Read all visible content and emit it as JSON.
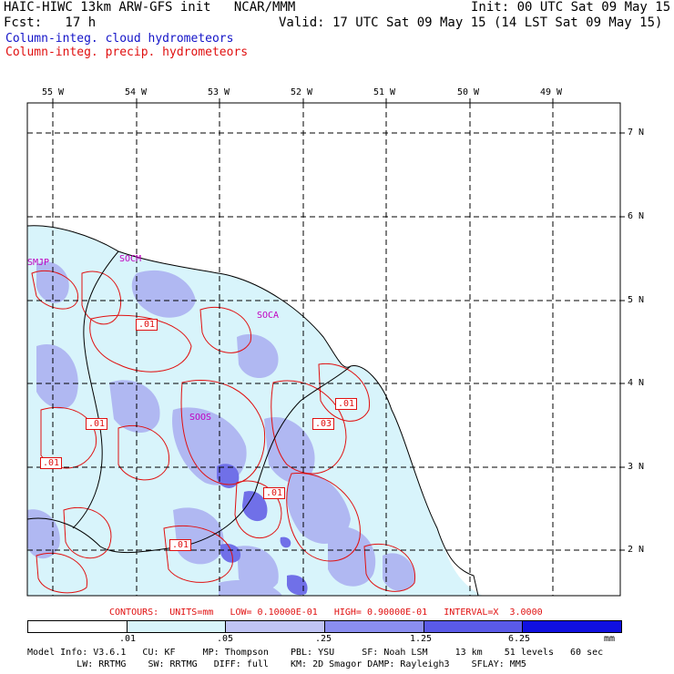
{
  "header": {
    "line1_left": "HAIC-HIWC 13km ARW-GFS init   NCAR/MMM",
    "line1_right": "Init: 00 UTC Sat 09 May 15",
    "line2_left": "Fcst:   17 h",
    "line2_right": "Valid: 17 UTC Sat 09 May 15 (14 LST Sat 09 May 15)",
    "field_cloud": "Column-integ. cloud hydrometeors",
    "field_precip": "Column-integ. precip. hydrometeors"
  },
  "map": {
    "lon_labels": [
      "55 W",
      "54 W",
      "53 W",
      "52 W",
      "51 W",
      "50 W",
      "49 W"
    ],
    "lat_labels": [
      "7 N",
      "6 N",
      "5 N",
      "4 N",
      "3 N",
      "2 N"
    ],
    "stations": [
      "SMJP",
      "SOCM",
      "SOCA",
      "SOOS"
    ],
    "contour_labels": [
      ".01",
      ".01",
      ".01",
      ".01",
      ".03",
      ".01",
      ".01"
    ]
  },
  "contours_info": "CONTOURS:  UNITS=mm   LOW= 0.10000E-01   HIGH= 0.90000E-01   INTERVAL=X  3.0000",
  "colorbar": {
    "ticks": [
      ".01",
      ".05",
      ".25",
      "1.25",
      "6.25"
    ],
    "unit": "mm",
    "colors": [
      "#ffffff",
      "#d8f4fb",
      "#c0c4f4",
      "#8a8ef0",
      "#5a5ae8",
      "#1010e0"
    ]
  },
  "footer": {
    "line1": "Model Info: V3.6.1   CU: KF     MP: Thompson    PBL: YSU     SF: Noah LSM     13 km    51 levels   60 sec",
    "line2": "         LW: RRTMG    SW: RRTMG   DIFF: full    KM: 2D Smagor DAMP: Rayleigh3    SFLAY: MM5"
  }
}
